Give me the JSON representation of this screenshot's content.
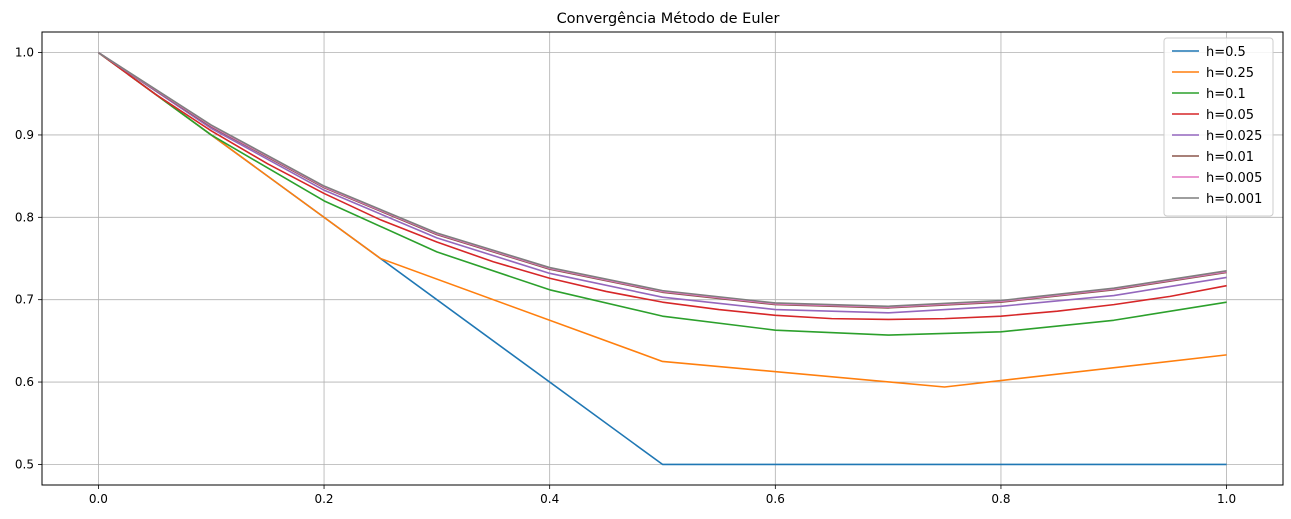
{
  "chart_data": {
    "type": "line",
    "title": "Convergência Método de Euler",
    "xlabel": "",
    "ylabel": "",
    "xlim": [
      -0.05,
      1.05
    ],
    "ylim": [
      0.475,
      1.025
    ],
    "xticks": [
      0.0,
      0.2,
      0.4,
      0.6,
      0.8,
      1.0
    ],
    "xtick_labels": [
      "0.0",
      "0.2",
      "0.4",
      "0.6",
      "0.8",
      "1.0"
    ],
    "yticks": [
      0.5,
      0.6,
      0.7,
      0.8,
      0.9,
      1.0
    ],
    "ytick_labels": [
      "0.5",
      "0.6",
      "0.7",
      "0.8",
      "0.9",
      "1.0"
    ],
    "grid": true,
    "legend_position": "top-right",
    "series": [
      {
        "name": "h=0.5",
        "color": "#1f77b4",
        "x": [
          0,
          0.5,
          1.0
        ],
        "y": [
          1.0,
          0.5,
          0.5
        ]
      },
      {
        "name": "h=0.25",
        "color": "#ff7f0e",
        "x": [
          0,
          0.25,
          0.5,
          0.75,
          1.0
        ],
        "y": [
          1.0,
          0.75,
          0.625,
          0.594,
          0.633
        ]
      },
      {
        "name": "h=0.1",
        "color": "#2ca02c",
        "x": [
          0,
          0.1,
          0.2,
          0.3,
          0.4,
          0.5,
          0.6,
          0.7,
          0.8,
          0.9,
          1.0
        ],
        "y": [
          1.0,
          0.9,
          0.82,
          0.758,
          0.712,
          0.68,
          0.663,
          0.657,
          0.661,
          0.675,
          0.697
        ]
      },
      {
        "name": "h=0.05",
        "color": "#d62728",
        "x": [
          0,
          0.05,
          0.1,
          0.15,
          0.2,
          0.25,
          0.3,
          0.35,
          0.4,
          0.45,
          0.5,
          0.55,
          0.6,
          0.65,
          0.7,
          0.75,
          0.8,
          0.85,
          0.9,
          0.95,
          1.0
        ],
        "y": [
          1.0,
          0.95,
          0.905,
          0.865,
          0.829,
          0.797,
          0.77,
          0.746,
          0.726,
          0.71,
          0.697,
          0.688,
          0.681,
          0.677,
          0.676,
          0.677,
          0.68,
          0.686,
          0.694,
          0.704,
          0.717
        ]
      },
      {
        "name": "h=0.025",
        "color": "#9467bd",
        "x": [
          0,
          0.1,
          0.2,
          0.3,
          0.4,
          0.5,
          0.6,
          0.7,
          0.8,
          0.9,
          1.0
        ],
        "y": [
          1.0,
          0.908,
          0.833,
          0.775,
          0.732,
          0.703,
          0.688,
          0.684,
          0.692,
          0.705,
          0.727
        ]
      },
      {
        "name": "h=0.01",
        "color": "#8c564b",
        "x": [
          0,
          0.1,
          0.2,
          0.3,
          0.4,
          0.5,
          0.6,
          0.7,
          0.8,
          0.9,
          1.0
        ],
        "y": [
          1.0,
          0.91,
          0.836,
          0.779,
          0.737,
          0.709,
          0.694,
          0.69,
          0.697,
          0.712,
          0.733
        ]
      },
      {
        "name": "h=0.005",
        "color": "#e377c2",
        "x": [
          0,
          0.1,
          0.2,
          0.3,
          0.4,
          0.5,
          0.6,
          0.7,
          0.8,
          0.9,
          1.0
        ],
        "y": [
          1.0,
          0.911,
          0.837,
          0.78,
          0.738,
          0.71,
          0.695,
          0.691,
          0.698,
          0.713,
          0.734
        ]
      },
      {
        "name": "h=0.001",
        "color": "#7f7f7f",
        "x": [
          0,
          0.1,
          0.2,
          0.3,
          0.4,
          0.5,
          0.6,
          0.7,
          0.8,
          0.9,
          1.0
        ],
        "y": [
          1.0,
          0.912,
          0.838,
          0.781,
          0.739,
          0.711,
          0.696,
          0.692,
          0.699,
          0.714,
          0.735
        ]
      }
    ]
  }
}
